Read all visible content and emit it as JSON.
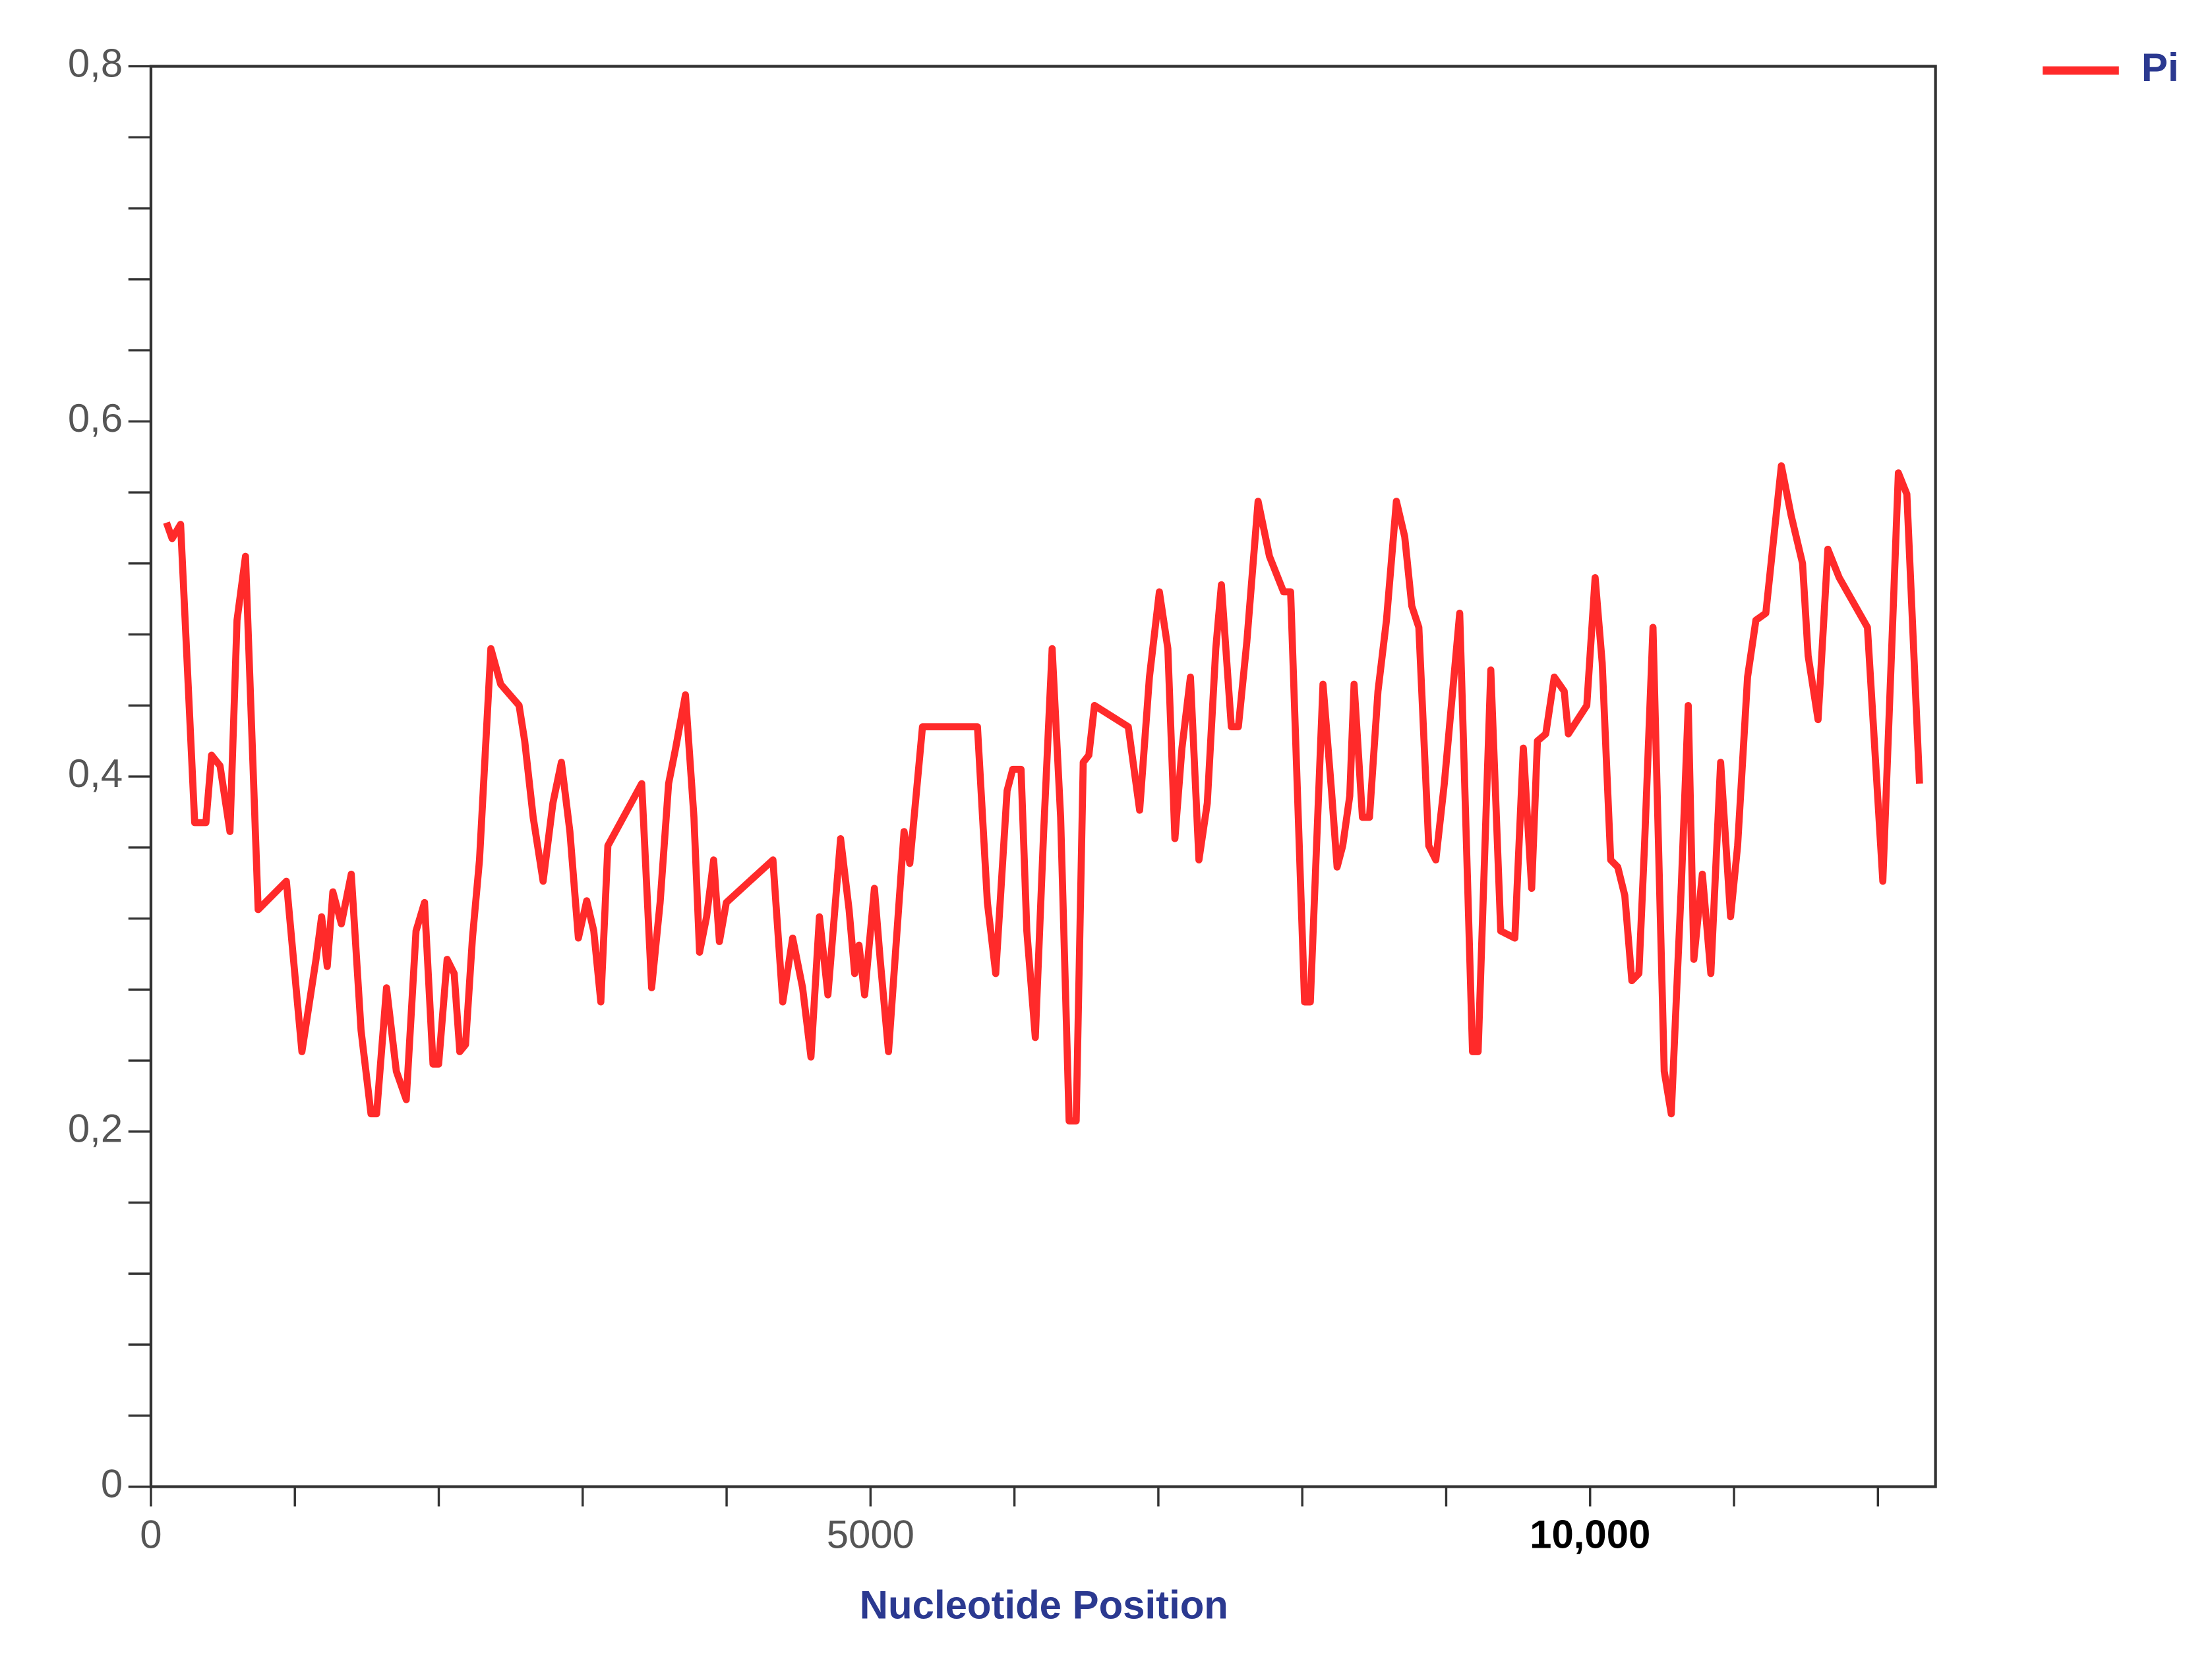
{
  "chart_data": {
    "type": "line",
    "xlabel": "Nucleotide Position",
    "legend": "top-right",
    "xlim": [
      0,
      12400
    ],
    "ylim": [
      0,
      0.8
    ],
    "xticks": [
      0,
      5000,
      {
        "value": 10000,
        "label": "10,000"
      }
    ],
    "xminor_ticks": [
      1000,
      2000,
      3000,
      4000,
      6000,
      7000,
      8000,
      9000,
      11000,
      12000
    ],
    "yticks": [
      {
        "value": 0,
        "label": "0"
      },
      {
        "value": 0.2,
        "label": "0,2"
      },
      {
        "value": 0.4,
        "label": "0,4"
      },
      {
        "value": 0.6,
        "label": "0,6"
      },
      {
        "value": 0.8,
        "label": "0,8"
      }
    ],
    "yminor_ticks": [
      0.04,
      0.08,
      0.12,
      0.16,
      0.24,
      0.28,
      0.32,
      0.36,
      0.44,
      0.48,
      0.52,
      0.56,
      0.64,
      0.68,
      0.72,
      0.76
    ],
    "x": [
      108,
      147,
      206,
      304,
      382,
      421,
      480,
      549,
      598,
      657,
      745,
      941,
      1049,
      1147,
      1186,
      1225,
      1264,
      1323,
      1392,
      1460,
      1529,
      1568,
      1637,
      1705,
      1774,
      1842,
      1901,
      1960,
      1999,
      2058,
      2107,
      2146,
      2186,
      2234,
      2283,
      2362,
      2430,
      2558,
      2597,
      2656,
      2725,
      2793,
      2852,
      2911,
      2970,
      3028,
      3077,
      3126,
      3175,
      3410,
      3479,
      3538,
      3597,
      3646,
      3714,
      3773,
      3812,
      3861,
      3910,
      3950,
      3998,
      4322,
      4390,
      4459,
      4528,
      4586,
      4645,
      4704,
      4792,
      4851,
      4890,
      4920,
      4959,
      5027,
      5067,
      5125,
      5233,
      5273,
      5361,
      5743,
      5812,
      5870,
      5949,
      5988,
      6046,
      6086,
      6145,
      6203,
      6262,
      6321,
      6380,
      6429,
      6478,
      6517,
      6556,
      6791,
      6870,
      6938,
      7007,
      7066,
      7115,
      7164,
      7223,
      7282,
      7340,
      7399,
      7438,
      7507,
      7556,
      7615,
      7693,
      7772,
      7870,
      7919,
      8016,
      8056,
      8144,
      8203,
      8242,
      8281,
      8330,
      8360,
      8418,
      8467,
      8526,
      8585,
      8654,
      8712,
      8761,
      8810,
      8879,
      8928,
      8987,
      9094,
      9183,
      9222,
      9310,
      9379,
      9477,
      9536,
      9594,
      9634,
      9692,
      9751,
      9820,
      9849,
      9977,
      10035,
      10084,
      10143,
      10192,
      10241,
      10290,
      10339,
      10378,
      10437,
      10515,
      10564,
      10633,
      10682,
      10721,
      10780,
      10839,
      10907,
      10976,
      11025,
      11094,
      11152,
      11221,
      11329,
      11397,
      11476,
      11515,
      11584,
      11652,
      11731,
      11927,
      12034,
      12142,
      12201,
      12289
    ],
    "series": [
      {
        "name": "Pi",
        "color": "#ff2a2a",
        "values": [
          0.543,
          0.534,
          0.542,
          0.374,
          0.374,
          0.412,
          0.406,
          0.369,
          0.488,
          0.524,
          0.325,
          0.341,
          0.245,
          0.297,
          0.321,
          0.293,
          0.335,
          0.317,
          0.345,
          0.257,
          0.21,
          0.21,
          0.281,
          0.234,
          0.218,
          0.313,
          0.329,
          0.238,
          0.238,
          0.297,
          0.289,
          0.245,
          0.249,
          0.309,
          0.353,
          0.472,
          0.452,
          0.44,
          0.42,
          0.377,
          0.341,
          0.385,
          0.408,
          0.369,
          0.309,
          0.33,
          0.313,
          0.273,
          0.361,
          0.396,
          0.281,
          0.329,
          0.396,
          0.416,
          0.446,
          0.377,
          0.301,
          0.321,
          0.353,
          0.307,
          0.329,
          0.353,
          0.273,
          0.309,
          0.281,
          0.242,
          0.321,
          0.277,
          0.365,
          0.325,
          0.289,
          0.305,
          0.277,
          0.337,
          0.297,
          0.245,
          0.369,
          0.351,
          0.428,
          0.428,
          0.329,
          0.289,
          0.392,
          0.404,
          0.404,
          0.313,
          0.253,
          0.369,
          0.472,
          0.377,
          0.206,
          0.206,
          0.408,
          0.412,
          0.44,
          0.428,
          0.381,
          0.456,
          0.504,
          0.472,
          0.365,
          0.416,
          0.456,
          0.353,
          0.385,
          0.472,
          0.508,
          0.428,
          0.428,
          0.476,
          0.555,
          0.524,
          0.504,
          0.504,
          0.273,
          0.273,
          0.452,
          0.392,
          0.349,
          0.361,
          0.389,
          0.452,
          0.377,
          0.377,
          0.448,
          0.488,
          0.555,
          0.535,
          0.496,
          0.484,
          0.361,
          0.353,
          0.396,
          0.492,
          0.245,
          0.245,
          0.46,
          0.313,
          0.309,
          0.416,
          0.337,
          0.42,
          0.424,
          0.456,
          0.448,
          0.424,
          0.44,
          0.512,
          0.464,
          0.353,
          0.349,
          0.333,
          0.285,
          0.289,
          0.361,
          0.484,
          0.234,
          0.21,
          0.337,
          0.44,
          0.297,
          0.345,
          0.289,
          0.408,
          0.321,
          0.361,
          0.456,
          0.488,
          0.492,
          0.575,
          0.547,
          0.52,
          0.468,
          0.432,
          0.528,
          0.512,
          0.484,
          0.341,
          0.571,
          0.559,
          0.396
        ]
      }
    ]
  }
}
